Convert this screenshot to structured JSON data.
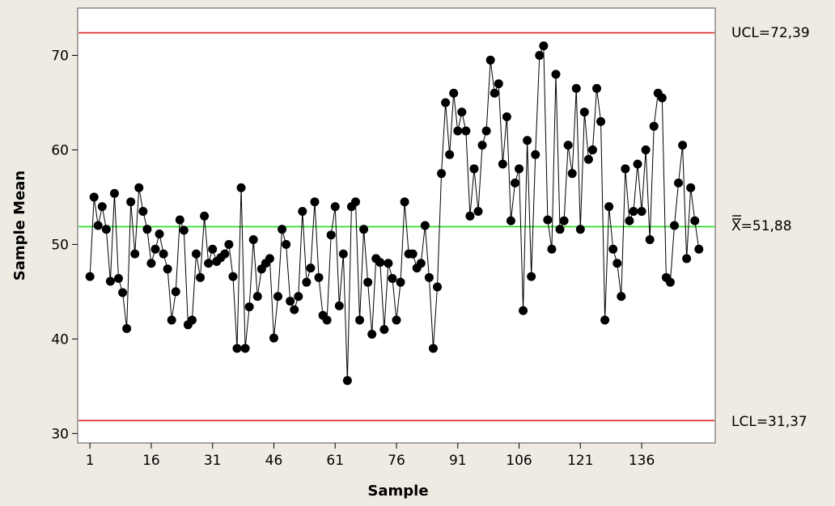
{
  "chart_data": {
    "type": "line",
    "title": "",
    "xlabel": "Sample",
    "ylabel": "Sample Mean",
    "xlim": [
      -2,
      154
    ],
    "ylim": [
      29,
      75
    ],
    "xticks": [
      1,
      16,
      31,
      46,
      61,
      76,
      91,
      106,
      121,
      136
    ],
    "yticks": [
      30,
      40,
      50,
      60,
      70
    ],
    "colors": {
      "series": "#000000",
      "center_line": "#22dd22",
      "limit_lines": "#dd2222",
      "plot_background": "#ffffff",
      "figure_background": "#efebe2"
    },
    "reference_lines": {
      "ucl": {
        "value": 72.39,
        "label": "UCL=72,39"
      },
      "center": {
        "value": 51.88,
        "label_symbol": "X",
        "label_value": "=51,88"
      },
      "lcl": {
        "value": 31.37,
        "label": "LCL=31,37"
      }
    },
    "series": [
      {
        "x": [
          1,
          2,
          3,
          4,
          5,
          6,
          7,
          8,
          9,
          10,
          11,
          12,
          13,
          14,
          15,
          16,
          17,
          18,
          19,
          20,
          21,
          22,
          23,
          24,
          25,
          26,
          27,
          28,
          29,
          30,
          31,
          32,
          33,
          34,
          35,
          36,
          37,
          38,
          39,
          40,
          41,
          42,
          43,
          44,
          45,
          46,
          47,
          48,
          49,
          50,
          51,
          52,
          53,
          54,
          55,
          56,
          57,
          58,
          59,
          60,
          61,
          62,
          63,
          64,
          65,
          66,
          67,
          68,
          69,
          70,
          71,
          72,
          73,
          74,
          75,
          76,
          77,
          78,
          79,
          80,
          81,
          82,
          83,
          84,
          85,
          86,
          87,
          88,
          89,
          90,
          91,
          92,
          93,
          94,
          95,
          96,
          97,
          98,
          99,
          100,
          101,
          102,
          103,
          104,
          105,
          106,
          107,
          108,
          109,
          110,
          111,
          112,
          113,
          114,
          115,
          116,
          117,
          118,
          119,
          120,
          121,
          122,
          123,
          124,
          125,
          126,
          127,
          128,
          129,
          130,
          131,
          132,
          133,
          134,
          135,
          136,
          137,
          138,
          139,
          140,
          141,
          142,
          143,
          144,
          145,
          146,
          147,
          148,
          149,
          150
        ],
        "values": [
          46.6,
          55.0,
          52.0,
          54.0,
          51.6,
          46.1,
          55.4,
          46.4,
          44.9,
          41.1,
          54.5,
          49.0,
          56.0,
          53.5,
          51.6,
          48.0,
          49.5,
          51.1,
          49.0,
          47.4,
          42.0,
          45.0,
          52.6,
          51.5,
          41.5,
          42.0,
          49.0,
          46.5,
          53.0,
          48.0,
          49.5,
          48.2,
          48.6,
          49.0,
          50.0,
          46.6,
          39.0,
          56.0,
          39.0,
          43.4,
          50.5,
          44.5,
          47.4,
          48.0,
          48.5,
          40.1,
          44.5,
          51.6,
          50.0,
          44.0,
          43.1,
          44.5,
          53.5,
          46.0,
          47.5,
          54.5,
          46.5,
          42.5,
          42.0,
          51.0,
          54.0,
          43.5,
          49.0,
          35.6,
          54.0,
          54.5,
          42.0,
          51.6,
          46.0,
          40.5,
          48.5,
          48.1,
          41.0,
          48.0,
          46.4,
          42.0,
          46.0,
          54.5,
          49.0,
          49.0,
          47.5,
          48.0,
          52.0,
          46.5,
          39.0,
          45.5,
          57.5,
          65.0,
          59.5,
          66.0,
          62.0,
          64.0,
          62.0,
          53.0,
          58.0,
          53.5,
          60.5,
          62.0,
          69.5,
          66.0,
          67.0,
          58.5,
          63.5,
          52.5,
          56.5,
          58.0,
          43.0,
          61.0,
          46.6,
          59.5,
          70.0,
          71.0,
          52.6,
          49.5,
          68.0,
          51.6,
          52.5,
          60.5,
          57.5,
          66.5,
          51.6,
          64.0,
          59.0,
          60.0,
          66.5,
          63.0,
          42.0,
          54.0,
          49.5,
          48.0,
          44.5,
          58.0,
          52.5,
          53.5,
          58.5,
          53.5,
          60.0,
          50.5,
          62.5,
          66.0,
          65.5,
          46.5,
          46.0,
          52.0,
          56.5,
          60.5,
          48.5,
          56.0,
          52.5,
          49.5
        ]
      }
    ]
  }
}
